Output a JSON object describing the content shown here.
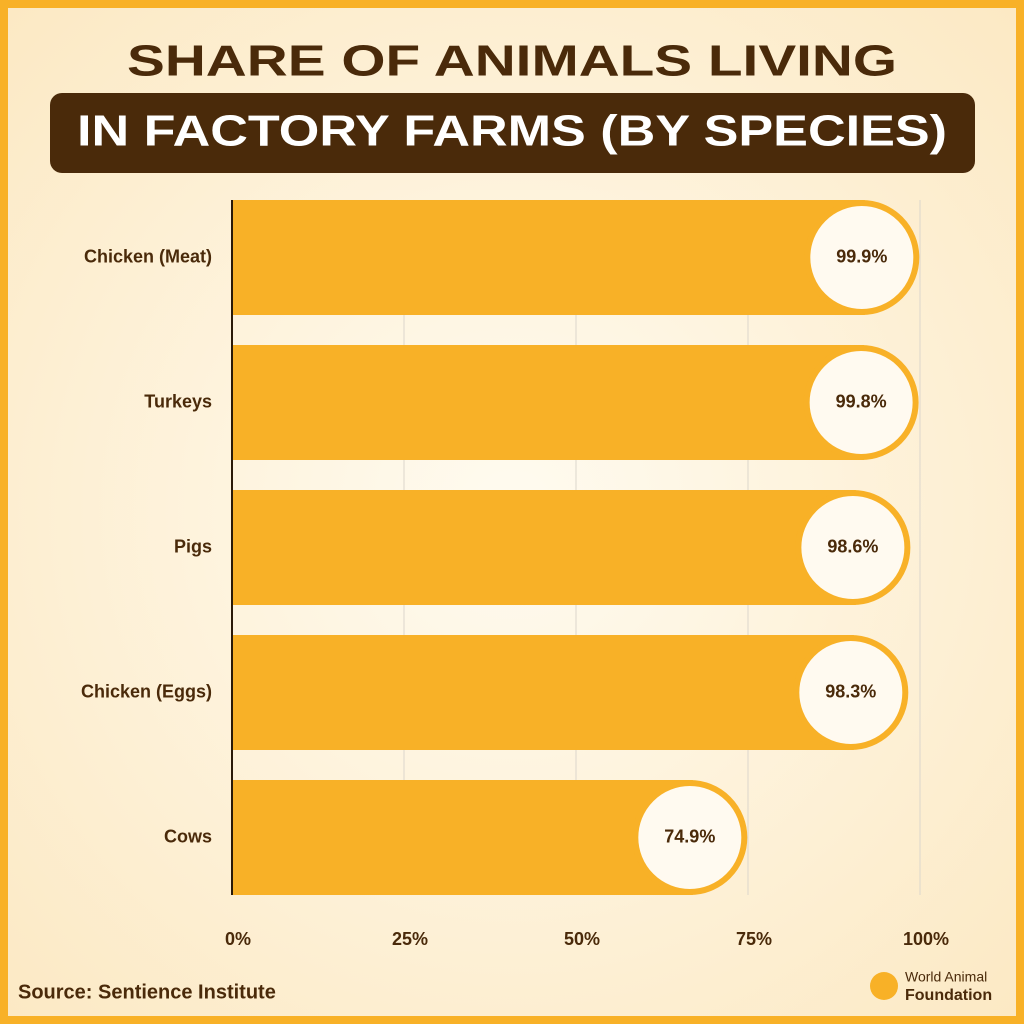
{
  "chart_data": {
    "type": "bar",
    "orientation": "horizontal",
    "title": [
      "SHARE OF ANIMALS LIVING",
      "IN FACTORY FARMS (BY SPECIES)"
    ],
    "categories": [
      "Chicken (Meat)",
      "Turkeys",
      "Pigs",
      "Chicken (Eggs)",
      "Cows"
    ],
    "values": [
      99.9,
      99.8,
      98.6,
      98.3,
      74.9
    ],
    "value_labels": [
      "99.9%",
      "99.8%",
      "98.6%",
      "98.3%",
      "74.9%"
    ],
    "color": "#f8b127",
    "xlim": [
      0,
      100
    ],
    "xticks": [
      {
        "value": 0,
        "label": "0%"
      },
      {
        "value": 25,
        "label": "25%"
      },
      {
        "value": 50,
        "label": "50%"
      },
      {
        "value": 75,
        "label": "75%"
      },
      {
        "value": 100,
        "label": "100%"
      }
    ],
    "grid": true
  },
  "source": "Source: Sentience Institute",
  "logo": [
    "World Animal",
    "Foundation"
  ]
}
